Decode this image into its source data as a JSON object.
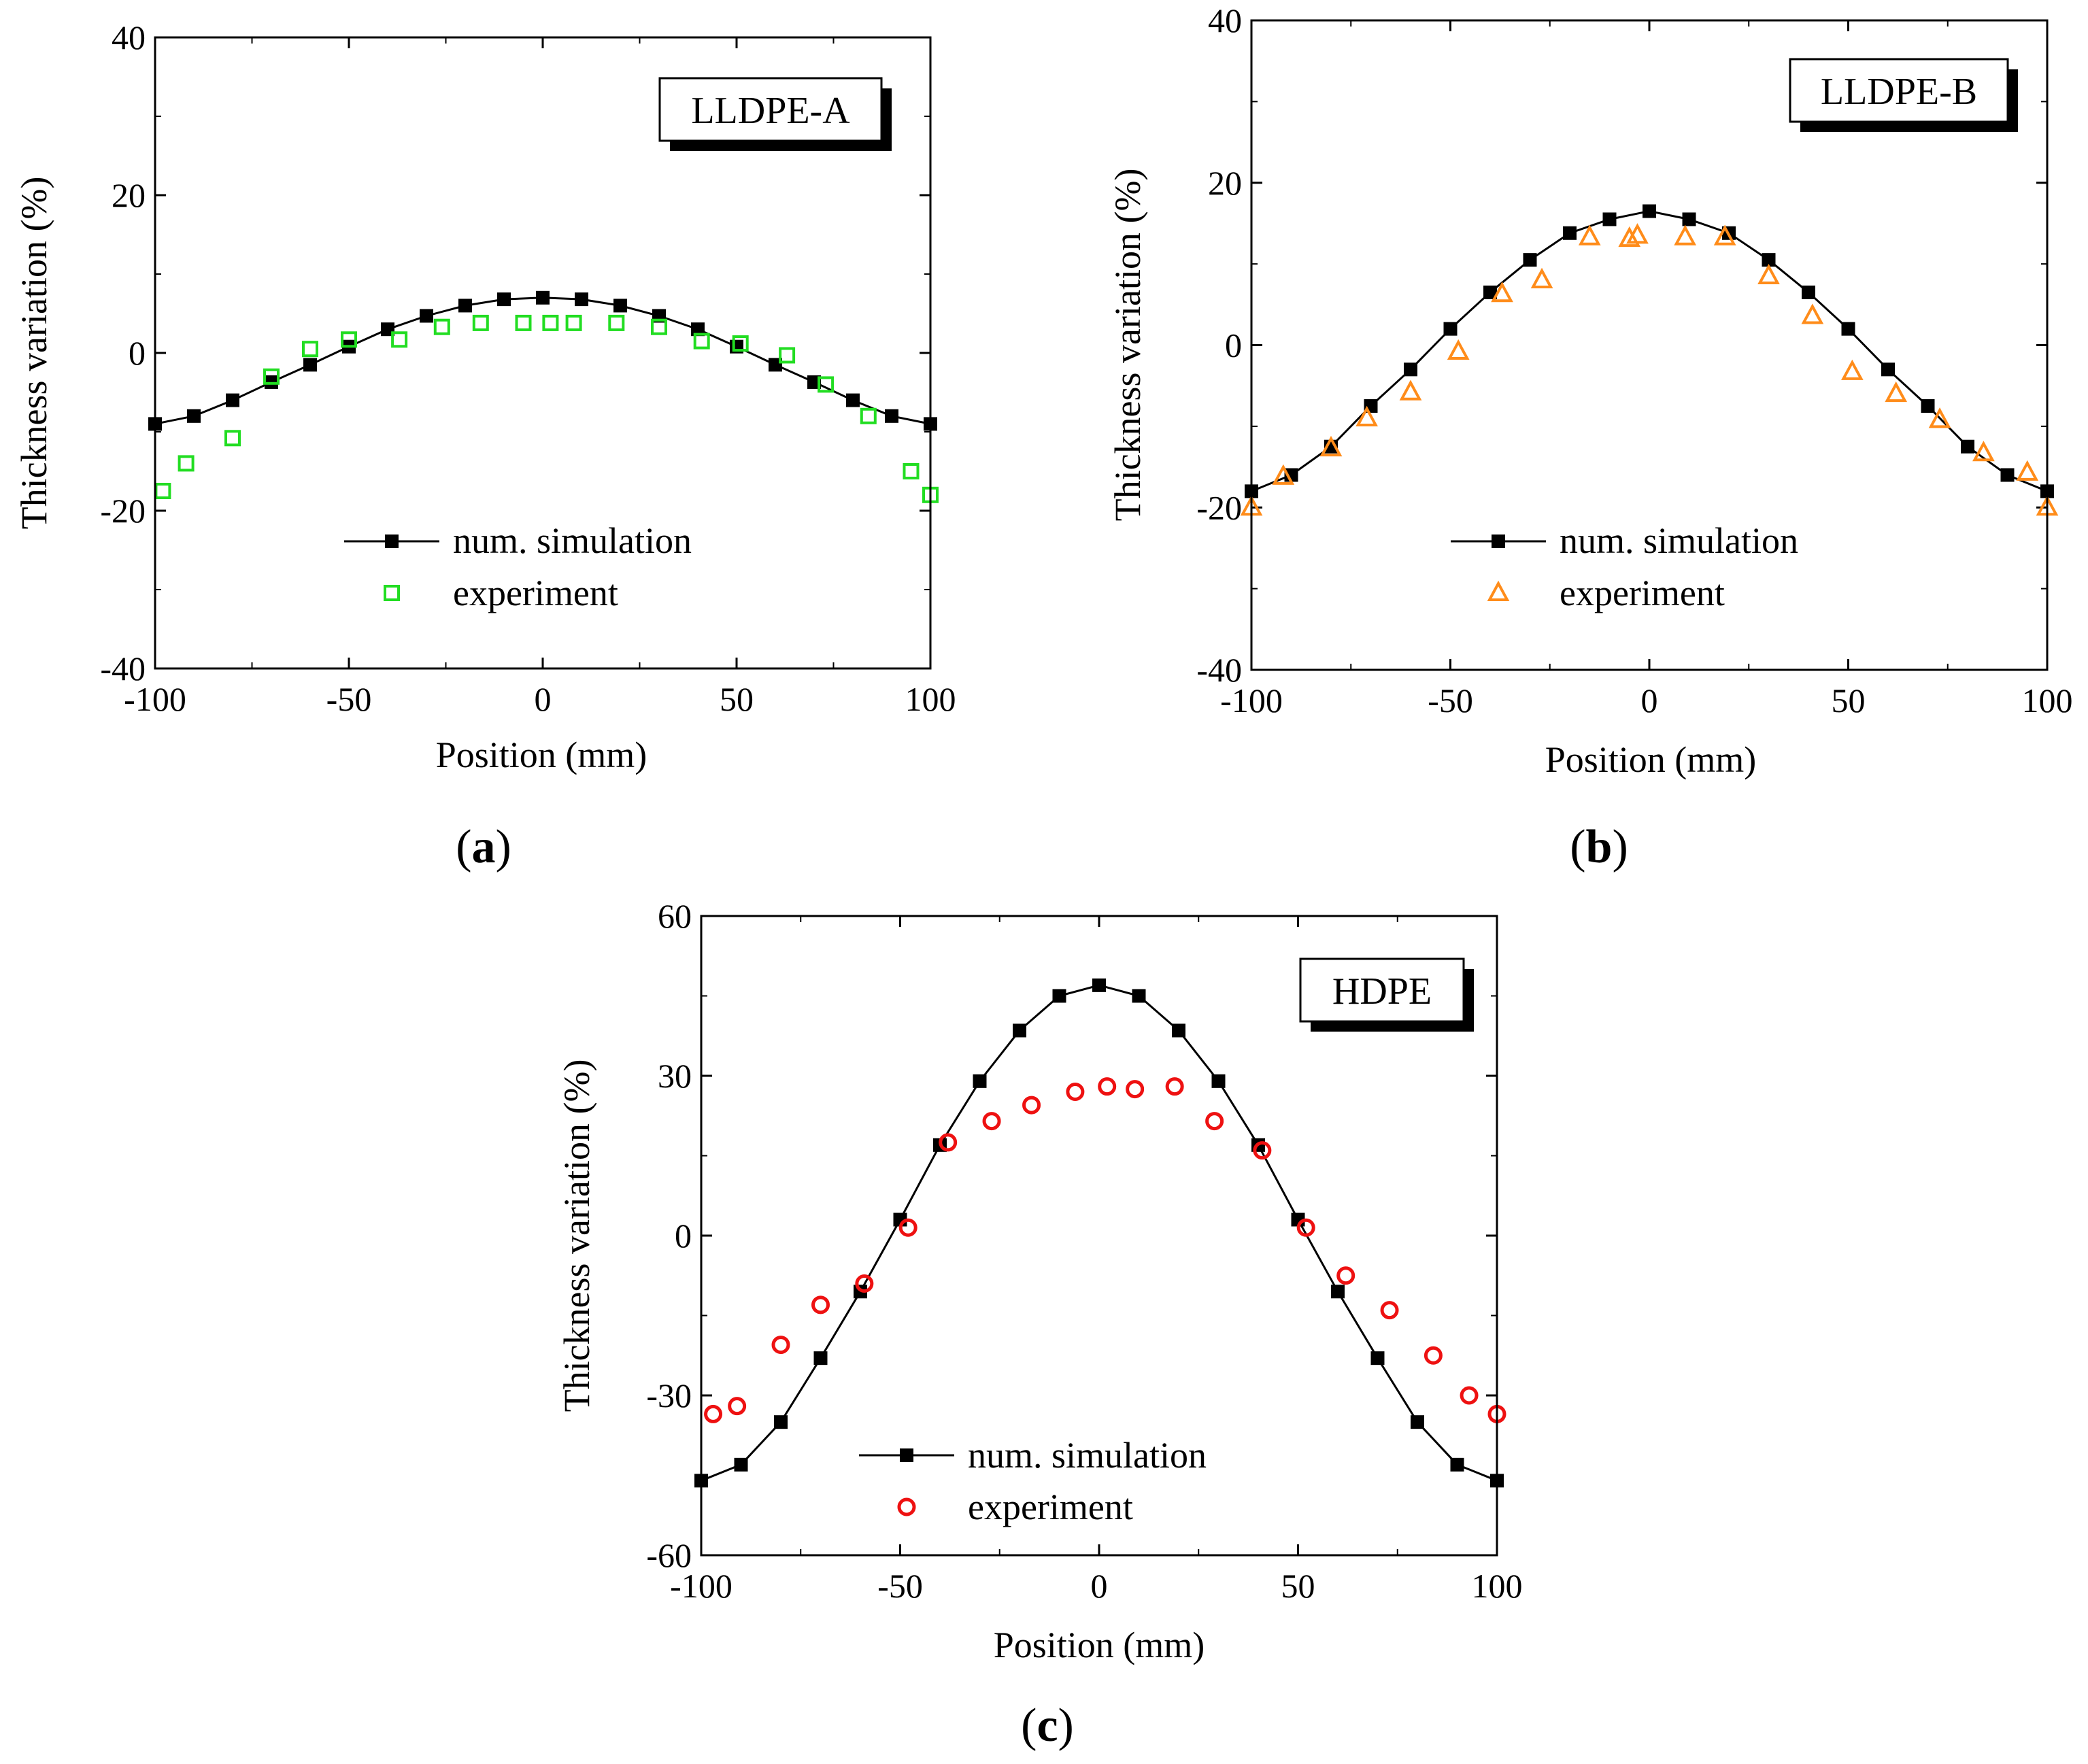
{
  "chart_data": [
    {
      "type": "line",
      "panel": "a",
      "caption_letter": "a",
      "title": "LLDPE-A",
      "xlabel": "Position (mm)",
      "ylabel": "Thickness variation (%)",
      "xlim": [
        -100,
        100
      ],
      "ylim": [
        -40,
        40
      ],
      "xticks": [
        -100,
        -50,
        0,
        50,
        100
      ],
      "yticks": [
        -40,
        -20,
        0,
        20,
        40
      ],
      "xtick_labels": [
        "-100",
        "-50",
        "0",
        "50",
        "100"
      ],
      "ytick_labels": [
        "-40",
        "-20",
        "0",
        "20",
        "40"
      ],
      "legend_position": "bottom-center",
      "series": [
        {
          "name": "num. simulation",
          "marker": "filled-square",
          "color": "#000000",
          "line": true,
          "x": [
            -100,
            -90,
            -80,
            -70,
            -60,
            -50,
            -40,
            -30,
            -20,
            -10,
            0,
            10,
            20,
            30,
            40,
            50,
            60,
            70,
            80,
            90,
            100
          ],
          "y": [
            -9,
            -8,
            -6,
            -3.7,
            -1.5,
            0.8,
            3,
            4.7,
            6,
            6.8,
            7,
            6.8,
            6,
            4.7,
            3,
            0.8,
            -1.5,
            -3.7,
            -6,
            -8,
            -9
          ]
        },
        {
          "name": "experiment",
          "marker": "open-square",
          "color": "#22dd22",
          "line": false,
          "x": [
            -98,
            -92,
            -80,
            -70,
            -60,
            -50,
            -37,
            -26,
            -16,
            -5,
            2,
            8,
            19,
            30,
            41,
            51,
            63,
            73,
            84,
            95,
            100
          ],
          "y": [
            -17.5,
            -14,
            -10.8,
            -3,
            0.5,
            1.7,
            1.7,
            3.3,
            3.8,
            3.8,
            3.8,
            3.8,
            3.8,
            3.3,
            1.5,
            1.2,
            -0.3,
            -4,
            -8,
            -15,
            -18
          ]
        }
      ]
    },
    {
      "type": "line",
      "panel": "b",
      "caption_letter": "b",
      "title": "LLDPE-B",
      "xlabel": "Position (mm)",
      "ylabel": "Thickness variation (%)",
      "xlim": [
        -100,
        100
      ],
      "ylim": [
        -40,
        40
      ],
      "xticks": [
        -100,
        -50,
        0,
        50,
        100
      ],
      "yticks": [
        -40,
        -20,
        0,
        20,
        40
      ],
      "xtick_labels": [
        "-100",
        "-50",
        "0",
        "50",
        "100"
      ],
      "ytick_labels": [
        "-40",
        "-20",
        "0",
        "20",
        "40"
      ],
      "legend_position": "bottom-center",
      "series": [
        {
          "name": "num. simulation",
          "marker": "filled-square",
          "color": "#000000",
          "line": true,
          "x": [
            -100,
            -90,
            -80,
            -70,
            -60,
            -50,
            -40,
            -30,
            -20,
            -10,
            0,
            10,
            20,
            30,
            40,
            50,
            60,
            70,
            80,
            90,
            100
          ],
          "y": [
            -18,
            -16,
            -12.5,
            -7.5,
            -3,
            2,
            6.5,
            10.5,
            13.8,
            15.5,
            16.5,
            15.5,
            13.8,
            10.5,
            6.5,
            2,
            -3,
            -7.5,
            -12.5,
            -16,
            -18
          ]
        },
        {
          "name": "experiment",
          "marker": "open-triangle",
          "color": "#ff8c1a",
          "line": false,
          "x": [
            -100,
            -92,
            -80,
            -71,
            -60,
            -48,
            -37,
            -27,
            -15,
            -5,
            -3,
            9,
            19,
            30,
            41,
            51,
            62,
            73,
            84,
            95,
            100
          ],
          "y": [
            -20,
            -16.2,
            -12.7,
            -9,
            -5.8,
            -0.8,
            6.3,
            8,
            13.3,
            13.1,
            13.5,
            13.3,
            13.3,
            8.5,
            3.6,
            -3.3,
            -6,
            -9.2,
            -13.3,
            -15.7,
            -20
          ]
        }
      ]
    },
    {
      "type": "line",
      "panel": "c",
      "caption_letter": "c",
      "title": "HDPE",
      "xlabel": "Position (mm)",
      "ylabel": "Thickness variation (%)",
      "xlim": [
        -100,
        100
      ],
      "ylim": [
        -60,
        60
      ],
      "xticks": [
        -100,
        -50,
        0,
        50,
        100
      ],
      "yticks": [
        -60,
        -30,
        0,
        30,
        60
      ],
      "xtick_labels": [
        "-100",
        "-50",
        "0",
        "50",
        "100"
      ],
      "ytick_labels": [
        "-60",
        "-30",
        "0",
        "30",
        "60"
      ],
      "legend_position": "bottom-center",
      "series": [
        {
          "name": "num. simulation",
          "marker": "filled-square",
          "color": "#000000",
          "line": true,
          "x": [
            -100,
            -90,
            -80,
            -70,
            -60,
            -50,
            -40,
            -30,
            -20,
            -10,
            0,
            10,
            20,
            30,
            40,
            50,
            60,
            70,
            80,
            90,
            100
          ],
          "y": [
            -46,
            -43,
            -35,
            -23,
            -10.5,
            3,
            17,
            29,
            38.5,
            45,
            47,
            45,
            38.5,
            29,
            17,
            3,
            -10.5,
            -23,
            -35,
            -43,
            -46
          ]
        },
        {
          "name": "experiment",
          "marker": "open-circle",
          "color": "#ee1111",
          "line": false,
          "x": [
            -97,
            -91,
            -80,
            -70,
            -59,
            -48,
            -38,
            -27,
            -17,
            -6,
            2,
            9,
            19,
            29,
            41,
            52,
            62,
            73,
            84,
            93,
            100
          ],
          "y": [
            -33.5,
            -32,
            -20.5,
            -13,
            -9,
            1.5,
            17.5,
            21.5,
            24.5,
            27,
            28,
            27.5,
            28,
            21.5,
            16,
            1.5,
            -7.5,
            -14,
            -22.5,
            -30,
            -33.5
          ]
        }
      ]
    }
  ]
}
